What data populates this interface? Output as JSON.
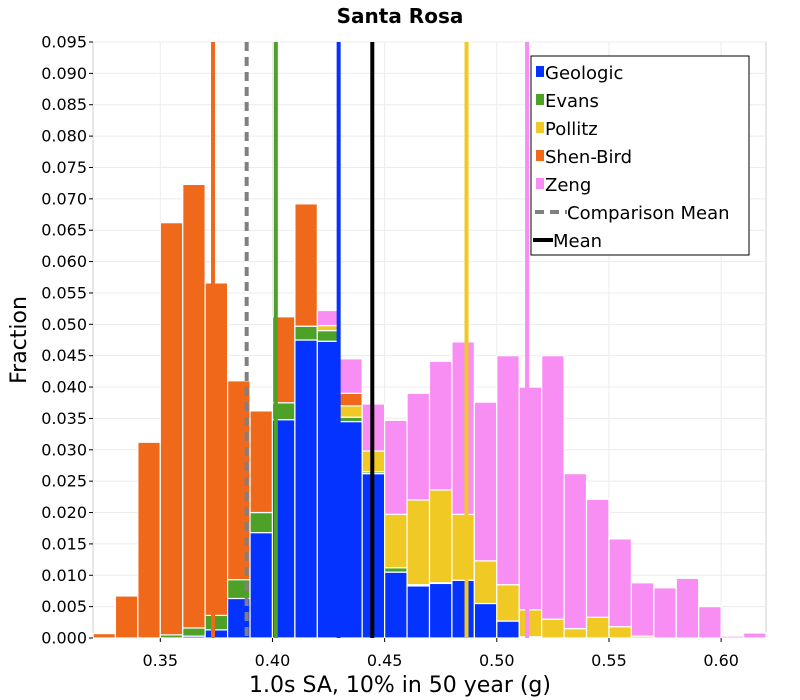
{
  "chart_data": {
    "type": "bar",
    "title": "Santa Rosa",
    "xlabel": "1.0s SA, 10% in 50 year (g)",
    "ylabel": "Fraction",
    "xlim": [
      0.32,
      0.62
    ],
    "ylim": [
      0,
      0.095
    ],
    "grid": true,
    "stacked": true,
    "bin_width": 0.01,
    "legend_position": "top-right",
    "x_ticks": [
      "0.35",
      "0.40",
      "0.45",
      "0.50",
      "0.55",
      "0.60"
    ],
    "x_tick_values": [
      0.35,
      0.4,
      0.45,
      0.5,
      0.55,
      0.6
    ],
    "y_ticks": [
      "0.000",
      "0.005",
      "0.010",
      "0.015",
      "0.020",
      "0.025",
      "0.030",
      "0.035",
      "0.040",
      "0.045",
      "0.050",
      "0.055",
      "0.060",
      "0.065",
      "0.070",
      "0.075",
      "0.080",
      "0.085",
      "0.090",
      "0.095"
    ],
    "y_tick_values": [
      0,
      0.005,
      0.01,
      0.015,
      0.02,
      0.025,
      0.03,
      0.035,
      0.04,
      0.045,
      0.05,
      0.055,
      0.06,
      0.065,
      0.07,
      0.075,
      0.08,
      0.085,
      0.09,
      0.095
    ],
    "bin_centers": [
      0.325,
      0.335,
      0.345,
      0.355,
      0.365,
      0.375,
      0.385,
      0.395,
      0.405,
      0.415,
      0.425,
      0.435,
      0.445,
      0.455,
      0.465,
      0.475,
      0.485,
      0.495,
      0.505,
      0.515,
      0.525,
      0.535,
      0.545,
      0.555,
      0.565,
      0.575,
      0.585,
      0.595,
      0.605,
      0.615
    ],
    "series": [
      {
        "name": "Geologic",
        "color": "#0433ff",
        "values": [
          0,
          0,
          0,
          0,
          0.0003,
          0.0013,
          0.0063,
          0.0168,
          0.0348,
          0.0475,
          0.0473,
          0.0345,
          0.0262,
          0.0105,
          0.0083,
          0.0087,
          0.0092,
          0.0055,
          0.0027,
          0.0002,
          0,
          0,
          0,
          0,
          0,
          0,
          0,
          0,
          0,
          0
        ]
      },
      {
        "name": "Evans",
        "color": "#4da127",
        "values": [
          0,
          0,
          0,
          0.0005,
          0.0013,
          0.0023,
          0.003,
          0.0032,
          0.0027,
          0.0022,
          0.0017,
          0.0007,
          0.0003,
          0.0007,
          0.0002,
          0.0001,
          0,
          0,
          0,
          0,
          0,
          0,
          0,
          0,
          0,
          0,
          0,
          0,
          0,
          0
        ]
      },
      {
        "name": "Pollitz",
        "color": "#f0c924",
        "values": [
          0,
          0,
          0,
          0,
          0,
          0,
          0,
          0,
          0,
          0,
          0.0008,
          0.0018,
          0.0033,
          0.0085,
          0.0135,
          0.0148,
          0.0105,
          0.0068,
          0.0058,
          0.0043,
          0.003,
          0.0015,
          0.0033,
          0.0018,
          0.0003,
          0,
          0,
          0,
          0,
          0
        ]
      },
      {
        "name": "Shen-Bird",
        "color": "#f0681a",
        "values": [
          0.0007,
          0.0067,
          0.0312,
          0.0657,
          0.0707,
          0.053,
          0.0317,
          0.0162,
          0.0137,
          0.0195,
          0,
          0.002,
          0,
          0,
          0,
          0,
          0,
          0,
          0,
          0,
          0,
          0,
          0,
          0,
          0,
          0,
          0,
          0,
          0,
          0
        ]
      },
      {
        "name": "Zeng",
        "color": "#f88ef3",
        "values": [
          0,
          0,
          0,
          0,
          0,
          0,
          0,
          0,
          0,
          0,
          0.0024,
          0.0055,
          0.0075,
          0.015,
          0.017,
          0.0205,
          0.0275,
          0.0253,
          0.0365,
          0.0355,
          0.042,
          0.0247,
          0.0188,
          0.014,
          0.0085,
          0.008,
          0.0095,
          0.005,
          0.0003,
          0.0008
        ]
      }
    ],
    "vertical_lines": [
      {
        "name": "Shen-Bird",
        "x": 0.3735,
        "color": "#f0681a",
        "style": "solid"
      },
      {
        "name": "Evans",
        "x": 0.4015,
        "color": "#4da127",
        "style": "solid"
      },
      {
        "name": "Geologic",
        "x": 0.4295,
        "color": "#0433ff",
        "style": "solid"
      },
      {
        "name": "Pollitz",
        "x": 0.4865,
        "color": "#f0c924",
        "style": "solid"
      },
      {
        "name": "Zeng",
        "x": 0.5135,
        "color": "#f88ef3",
        "style": "solid"
      },
      {
        "name": "Comparison Mean",
        "x": 0.3885,
        "color": "#808080",
        "style": "dashed"
      },
      {
        "name": "Mean",
        "x": 0.4445,
        "color": "#000000",
        "style": "solid"
      }
    ],
    "legend": [
      {
        "label": "Geologic",
        "color": "#0433ff",
        "marker": "square"
      },
      {
        "label": "Evans",
        "color": "#4da127",
        "marker": "square"
      },
      {
        "label": "Pollitz",
        "color": "#f0c924",
        "marker": "square"
      },
      {
        "label": "Shen-Bird",
        "color": "#f0681a",
        "marker": "square"
      },
      {
        "label": "Zeng",
        "color": "#f88ef3",
        "marker": "square"
      },
      {
        "label": "Comparison Mean",
        "color": "#808080",
        "marker": "dashed-line"
      },
      {
        "label": "Mean",
        "color": "#000000",
        "marker": "line"
      }
    ]
  }
}
